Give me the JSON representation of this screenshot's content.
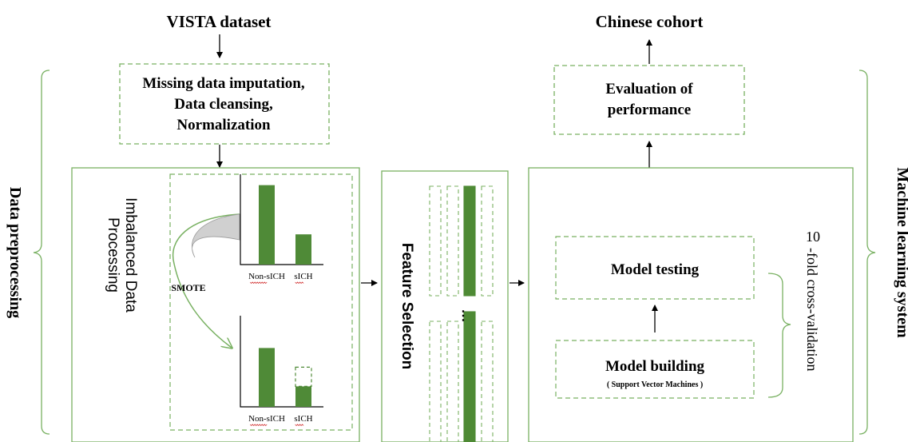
{
  "colors": {
    "green_line": "#79b162",
    "green_fill": "#4e8a35",
    "bar_fill": "#4f8a37",
    "arrow_gray": "#d0d0d0",
    "text": "#000000",
    "squiggle": "#d43c3c"
  },
  "top": {
    "dataset_title": "VISTA dataset",
    "cohort_title": "Chinese cohort"
  },
  "preprocessing": {
    "step_lines": [
      "Missing data imputation,",
      "Data cleansing,",
      "Normalization"
    ],
    "side_label": "Data preprocessing"
  },
  "imbalanced": {
    "title_lines": [
      "Imbalanced Data",
      "Processing"
    ],
    "smote_label": "SMOTE",
    "before_bars": [
      {
        "category": "Non-sICH",
        "value": 0.92
      },
      {
        "category": "sICH",
        "value": 0.35
      }
    ],
    "after_bars": [
      {
        "category": "Non-sICH",
        "value": 0.92
      },
      {
        "category": "sICH",
        "value": 0.62,
        "synthetic": 0.3
      }
    ]
  },
  "feature_selection": {
    "label": "Feature Selection",
    "ellipsis": "⋮"
  },
  "ml": {
    "evaluation_lines": [
      "Evaluation of",
      "performance"
    ],
    "testing_label": "Model testing",
    "building_label": "Model building",
    "building_sub": "( Support Vector Machines )",
    "cv_number": "10",
    "cv_text": "-fold cross-validation",
    "side_label": "Machine learning system"
  },
  "icons": {
    "curved_arrow": "curved-arrow-icon"
  }
}
